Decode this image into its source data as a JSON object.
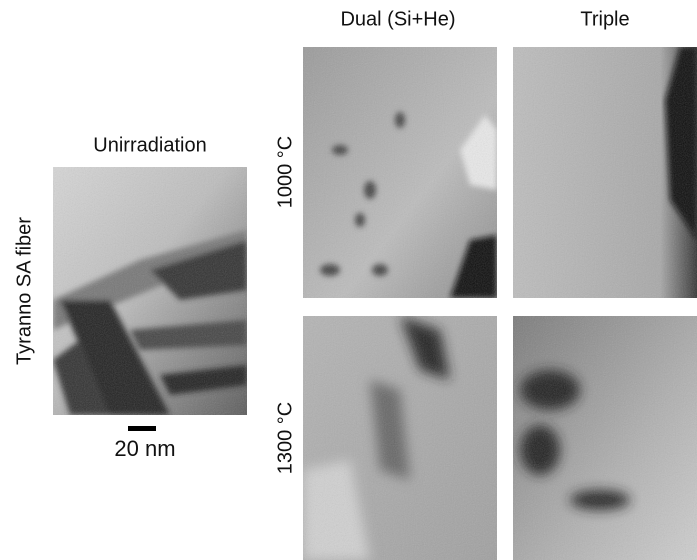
{
  "figure": {
    "column_headers": [
      "Dual (Si+He)",
      "Triple"
    ],
    "row_labels": [
      "1000 °C",
      "1300 °C"
    ],
    "reference": {
      "title": "Unirradiation",
      "row_label": "Tyranno SA fiber",
      "scale_bar": "20 nm"
    }
  }
}
